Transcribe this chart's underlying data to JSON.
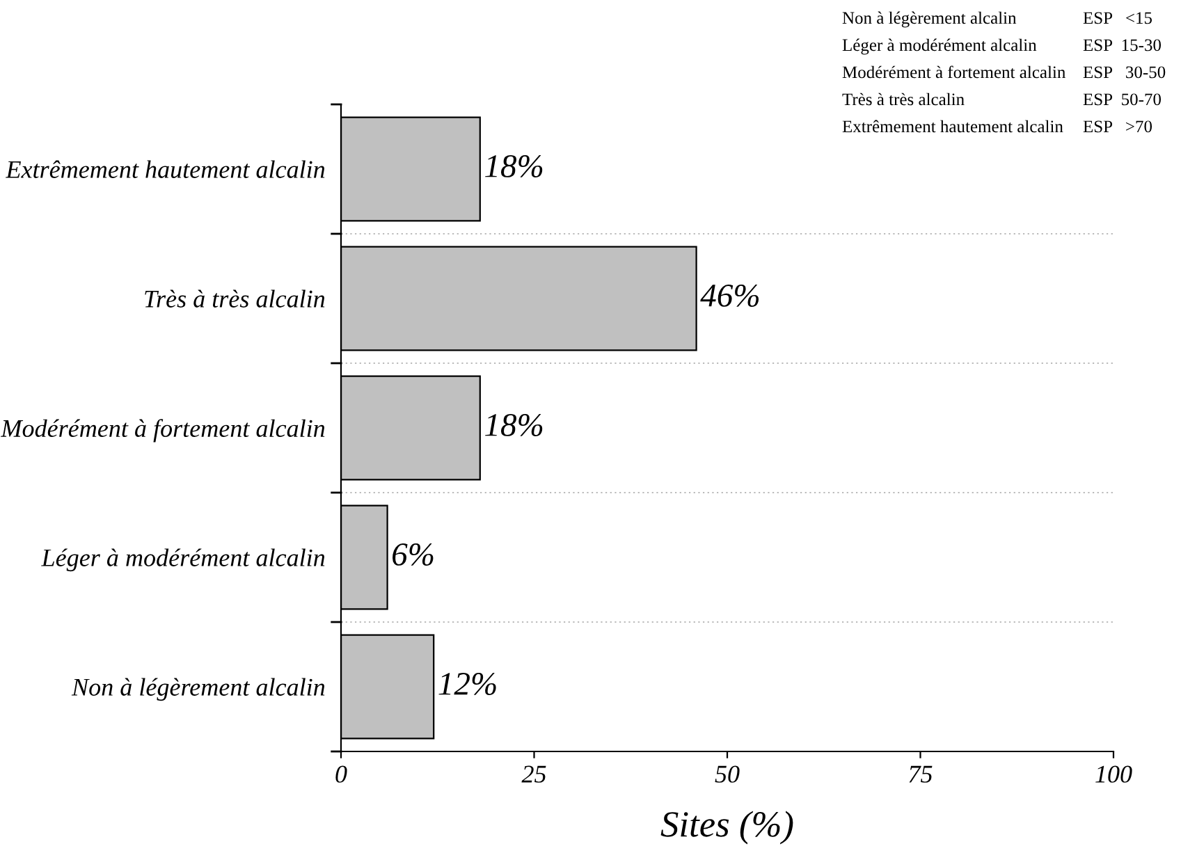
{
  "chart_data": {
    "type": "bar",
    "orientation": "horizontal",
    "categories": [
      "Extrêmement hautement alcalin",
      "Très à très alcalin",
      "Modérément à fortement alcalin",
      "Léger à modérément alcalin",
      "Non à légèrement alcalin"
    ],
    "values": [
      18,
      46,
      18,
      6,
      12
    ],
    "value_labels": [
      "18%",
      "46%",
      "18%",
      "6%",
      "12%"
    ],
    "color": "#c0c0c0",
    "xlim": [
      0,
      100
    ],
    "xticks": [
      0,
      25,
      50,
      75,
      100
    ],
    "xlabel": "Sites (%)",
    "grid": "y",
    "annotations": [
      "Non à légèrement alcalin",
      "ESP   <15",
      "Léger à modérément alcalin",
      "ESP  15-30",
      "Modérément à fortement alcalin",
      "ESP   30-50",
      "Très à très alcalin",
      "ESP  50-70",
      "Extrêmement hautement alcalin",
      "ESP   >70"
    ]
  }
}
